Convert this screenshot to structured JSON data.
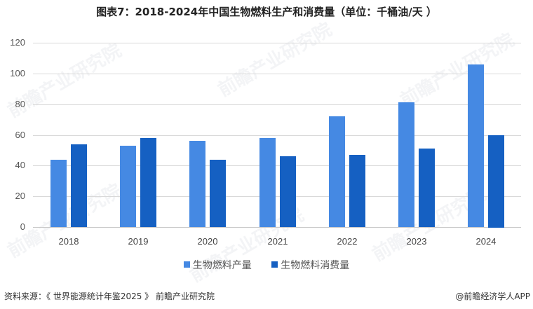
{
  "title": "图表7：2018-2024年中国生物燃料生产和消费量（单位：千桶油/天 ）",
  "chart_data": {
    "type": "bar",
    "title": "图表7：2018-2024年中国生物燃料生产和消费量（单位：千桶油/天 ）",
    "categories": [
      "2018",
      "2019",
      "2020",
      "2021",
      "2022",
      "2023",
      "2024"
    ],
    "series": [
      {
        "name": "生物燃料产量",
        "color": "#4589e3",
        "values": [
          44,
          53,
          56,
          58,
          72,
          81,
          106
        ]
      },
      {
        "name": "生物燃料消费量",
        "color": "#1560c2",
        "values": [
          54,
          58,
          44,
          46,
          47,
          51,
          60
        ]
      }
    ],
    "xlabel": "",
    "ylabel": "",
    "ylim": [
      0,
      120
    ],
    "yticks": [
      0,
      20,
      40,
      60,
      80,
      100,
      120
    ],
    "grid": true,
    "legend_position": "bottom"
  },
  "legend": {
    "items": [
      {
        "label": "生物燃料产量",
        "color": "#4589e3"
      },
      {
        "label": "生物燃料消费量",
        "color": "#1560c2"
      }
    ]
  },
  "footer": {
    "source": "资料来源：《 世界能源统计年鉴2025 》 前瞻产业研究院",
    "credit": "@前瞻经济学人APP"
  },
  "watermark": "前瞻产业研究院"
}
